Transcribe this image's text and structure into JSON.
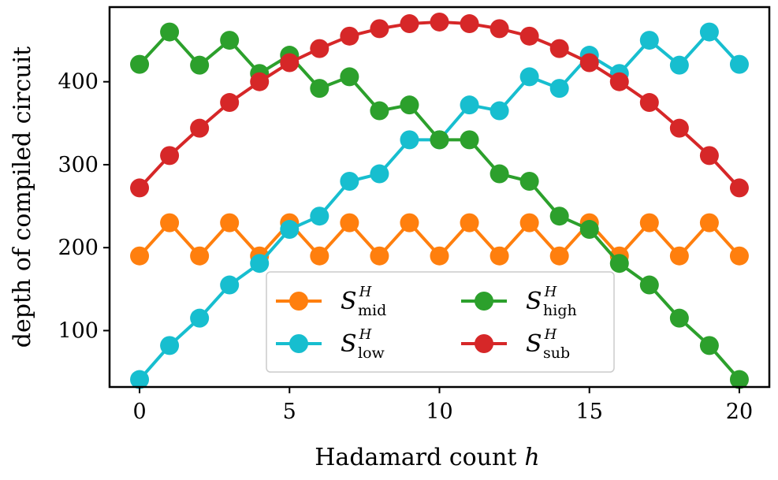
{
  "chart_data": {
    "type": "line",
    "xlabel": "Hadamard count",
    "xlabel_var": "h",
    "ylabel": "depth of compiled circuit",
    "xlim": [
      -1,
      21
    ],
    "ylim": [
      32,
      490
    ],
    "xticks": [
      0,
      5,
      10,
      15,
      20
    ],
    "yticks": [
      100,
      200,
      300,
      400
    ],
    "legend_location": "lower-center",
    "x": [
      0,
      1,
      2,
      3,
      4,
      5,
      6,
      7,
      8,
      9,
      10,
      11,
      12,
      13,
      14,
      15,
      16,
      17,
      18,
      19,
      20
    ],
    "series": [
      {
        "key": "mid",
        "name_main": "S",
        "name_sup": "H",
        "name_sub": "mid",
        "color": "#ff7f0e",
        "values": [
          190,
          230,
          190,
          230,
          190,
          230,
          190,
          230,
          190,
          230,
          190,
          230,
          190,
          230,
          190,
          230,
          190,
          230,
          190,
          230,
          190
        ]
      },
      {
        "key": "low",
        "name_main": "S",
        "name_sup": "H",
        "name_sub": "low",
        "color": "#17becf",
        "values": [
          41,
          82,
          115,
          155,
          181,
          222,
          238,
          280,
          289,
          330,
          330,
          372,
          365,
          406,
          392,
          432,
          410,
          450,
          420,
          460,
          421
        ]
      },
      {
        "key": "high",
        "name_main": "S",
        "name_sup": "H",
        "name_sub": "high",
        "color": "#2ca02c",
        "values": [
          421,
          460,
          420,
          450,
          410,
          432,
          392,
          406,
          365,
          372,
          330,
          330,
          289,
          280,
          238,
          222,
          181,
          155,
          115,
          82,
          41
        ]
      },
      {
        "key": "sub",
        "name_main": "S",
        "name_sup": "H",
        "name_sub": "sub",
        "color": "#d62728",
        "values": [
          272,
          311,
          344,
          375,
          400,
          423,
          440,
          455,
          464,
          470,
          472,
          470,
          464,
          455,
          440,
          423,
          400,
          375,
          344,
          311,
          272
        ]
      }
    ]
  }
}
